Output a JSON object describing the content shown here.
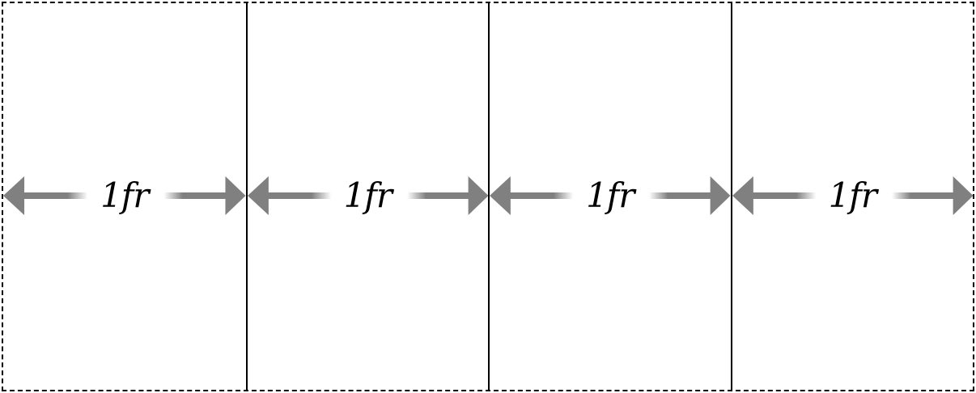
{
  "diagram": {
    "columns": [
      {
        "label": "1fr"
      },
      {
        "label": "1fr"
      },
      {
        "label": "1fr"
      },
      {
        "label": "1fr"
      }
    ],
    "colors": {
      "arrow": "#808080",
      "line": "#000000",
      "background": "#ffffff"
    }
  }
}
